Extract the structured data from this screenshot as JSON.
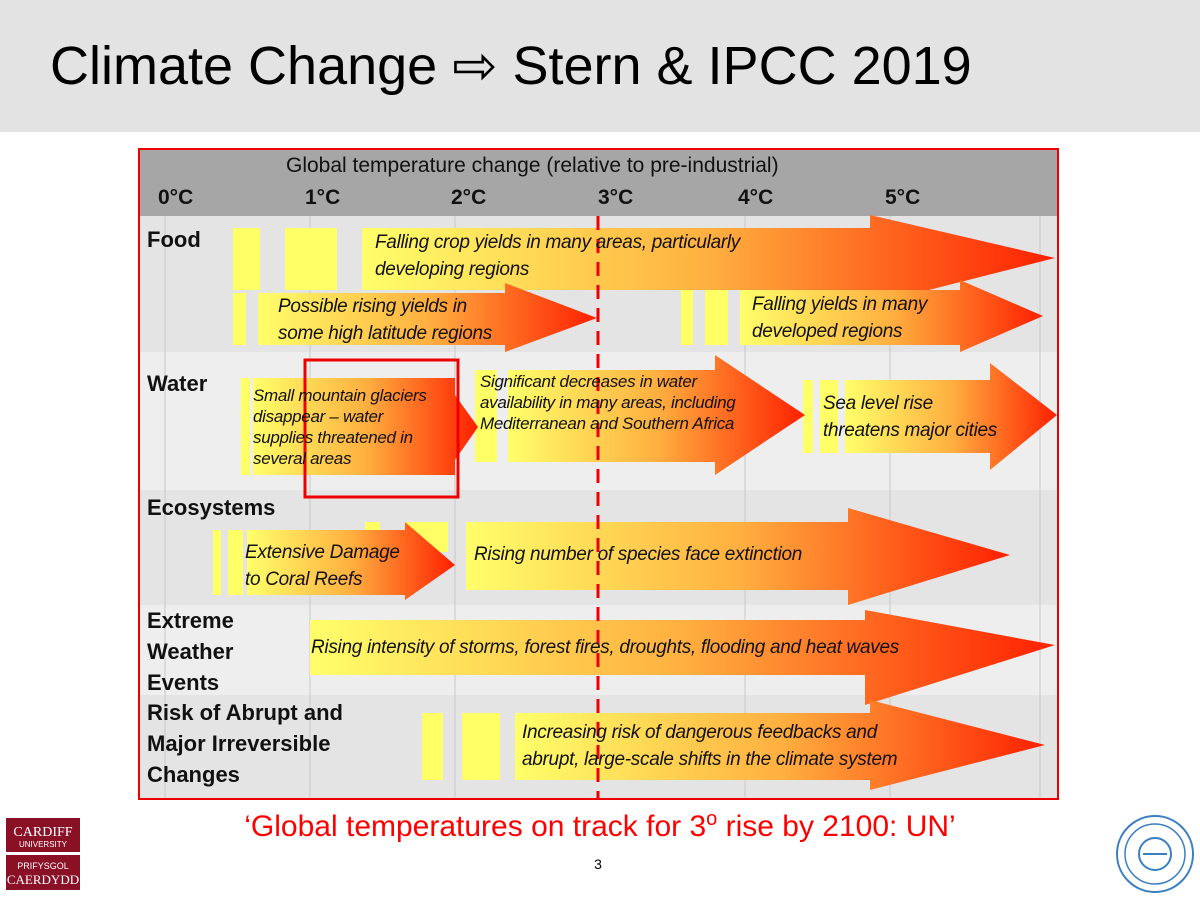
{
  "slide": {
    "title": "Climate Change ⇨ Stern & IPCC 2019",
    "quote_pre": "‘Global temperatures on track for 3",
    "quote_sup": "o",
    "quote_post": " rise by 2100: UN’",
    "page_number": "3",
    "logos": {
      "left": "Cardiff University / Prifysgol Caerdydd",
      "right": "Hohai University"
    }
  },
  "diagram": {
    "header": "Global temperature change (relative to pre-industrial)",
    "ticks": [
      "0°C",
      "1°C",
      "2°C",
      "3°C",
      "4°C",
      "5°C"
    ],
    "rows": [
      "Food",
      "Water",
      "Ecosystems",
      "Extreme Weather Events",
      "Risk of Abrupt and Major Irreversible Changes"
    ],
    "row_lines": {
      "extreme": [
        "Extreme",
        "Weather",
        "Events"
      ],
      "risk": [
        "Risk of Abrupt and",
        "Major Irreversible",
        "Changes"
      ]
    },
    "impacts": {
      "food1": [
        "Falling crop yields in many areas, particularly",
        "developing regions"
      ],
      "food2": [
        "Possible rising yields in",
        "some high latitude regions"
      ],
      "food3": [
        "Falling yields in many",
        "developed regions"
      ],
      "water1": [
        "Small mountain glaciers",
        "disappear  – water",
        "supplies threatened in",
        "several areas"
      ],
      "water2": [
        "Significant decreases in water",
        "availability in many areas, including",
        "Mediterranean and Southern Africa"
      ],
      "water3": [
        "Sea level rise",
        "threatens major cities"
      ],
      "eco1": [
        "Extensive Damage",
        "to Coral Reefs"
      ],
      "eco2": "Rising number of species face extinction",
      "extreme": "Rising intensity of storms, forest fires, droughts, flooding and heat waves",
      "risk": [
        "Increasing risk of dangerous feedbacks and",
        "abrupt, large-scale shifts in the climate system"
      ]
    },
    "colors": {
      "highlight": "#ee0000",
      "arrow_start": "#ffff66",
      "arrow_end": "#ff2200"
    }
  }
}
